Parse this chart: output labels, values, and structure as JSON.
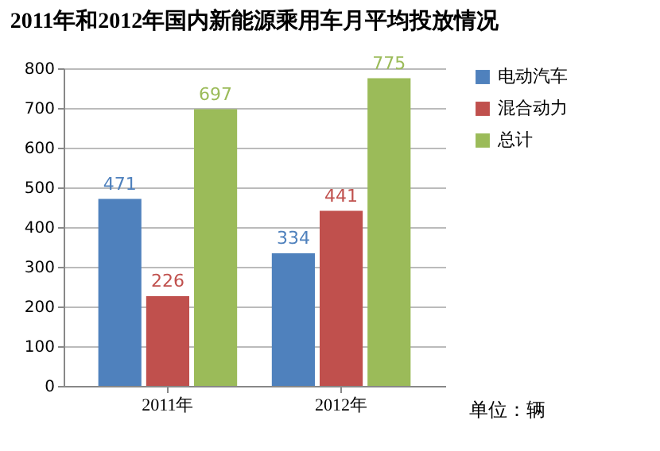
{
  "chart_data": {
    "type": "bar",
    "title": "2011年和2012年国内新能源乘用车月平均投放情况",
    "categories": [
      "2011年",
      "2012年"
    ],
    "series": [
      {
        "name": "电动汽车",
        "color": "#4f81bd",
        "values": [
          471,
          334
        ]
      },
      {
        "name": "混合动力",
        "color": "#c0504d",
        "values": [
          226,
          441
        ]
      },
      {
        "name": "总计",
        "color": "#9bbb59",
        "values": [
          697,
          775
        ]
      }
    ],
    "ylim": [
      0,
      800
    ],
    "yticks": [
      0,
      100,
      200,
      300,
      400,
      500,
      600,
      700,
      800
    ],
    "grid": "y",
    "legend": "right",
    "data_labels": true,
    "annotations": [
      "单位：辆"
    ]
  }
}
